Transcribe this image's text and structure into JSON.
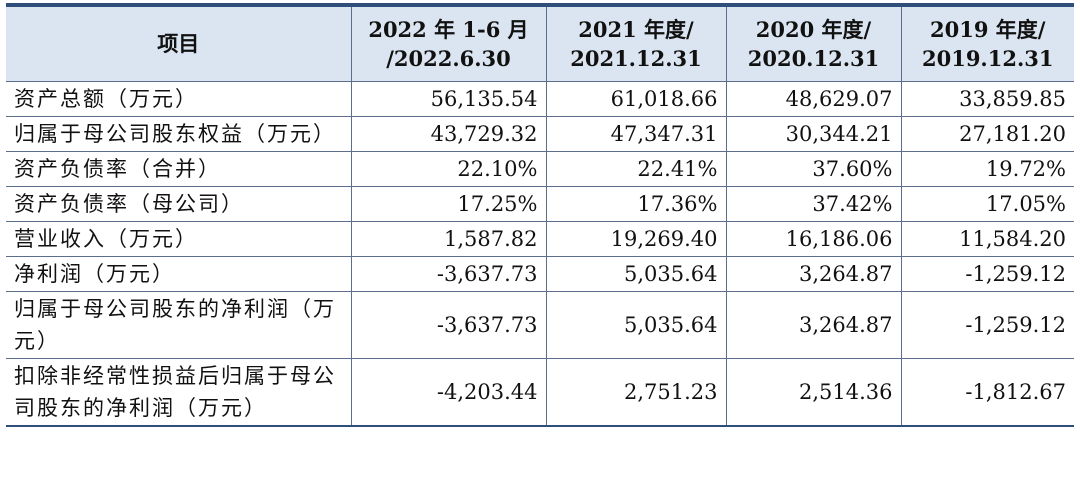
{
  "header": {
    "item": "项目",
    "periods": [
      {
        "line1": "2022 年 1-6 月",
        "line2": "/2022.6.30"
      },
      {
        "line1": "2021 年度/",
        "line2": "2021.12.31"
      },
      {
        "line1": "2020 年度/",
        "line2": "2020.12.31"
      },
      {
        "line1": "2019 年度/",
        "line2": "2019.12.31"
      }
    ]
  },
  "rows": [
    {
      "label": "资产总额（万元）",
      "values": [
        "56,135.54",
        "61,018.66",
        "48,629.07",
        "33,859.85"
      ]
    },
    {
      "label": "归属于母公司股东权益（万元）",
      "values": [
        "43,729.32",
        "47,347.31",
        "30,344.21",
        "27,181.20"
      ]
    },
    {
      "label": "资产负债率（合并）",
      "values": [
        "22.10%",
        "22.41%",
        "37.60%",
        "19.72%"
      ]
    },
    {
      "label": "资产负债率（母公司）",
      "values": [
        "17.25%",
        "17.36%",
        "37.42%",
        "17.05%"
      ]
    },
    {
      "label": "营业收入（万元）",
      "values": [
        "1,587.82",
        "19,269.40",
        "16,186.06",
        "11,584.20"
      ]
    },
    {
      "label": "净利润（万元）",
      "values": [
        "-3,637.73",
        "5,035.64",
        "3,264.87",
        "-1,259.12"
      ]
    },
    {
      "label": "归属于母公司股东的净利润（万元）",
      "values": [
        "-3,637.73",
        "5,035.64",
        "3,264.87",
        "-1,259.12"
      ]
    },
    {
      "label": "扣除非经常性损益后归属于母公司股东的净利润（万元）",
      "values": [
        "-4,203.44",
        "2,751.23",
        "2,514.36",
        "-1,812.67"
      ]
    }
  ],
  "colors": {
    "header_bg": "#dbe5f1",
    "border": "#5b6f8c",
    "top_rule": "#2f4e7a",
    "text": "#111111"
  }
}
